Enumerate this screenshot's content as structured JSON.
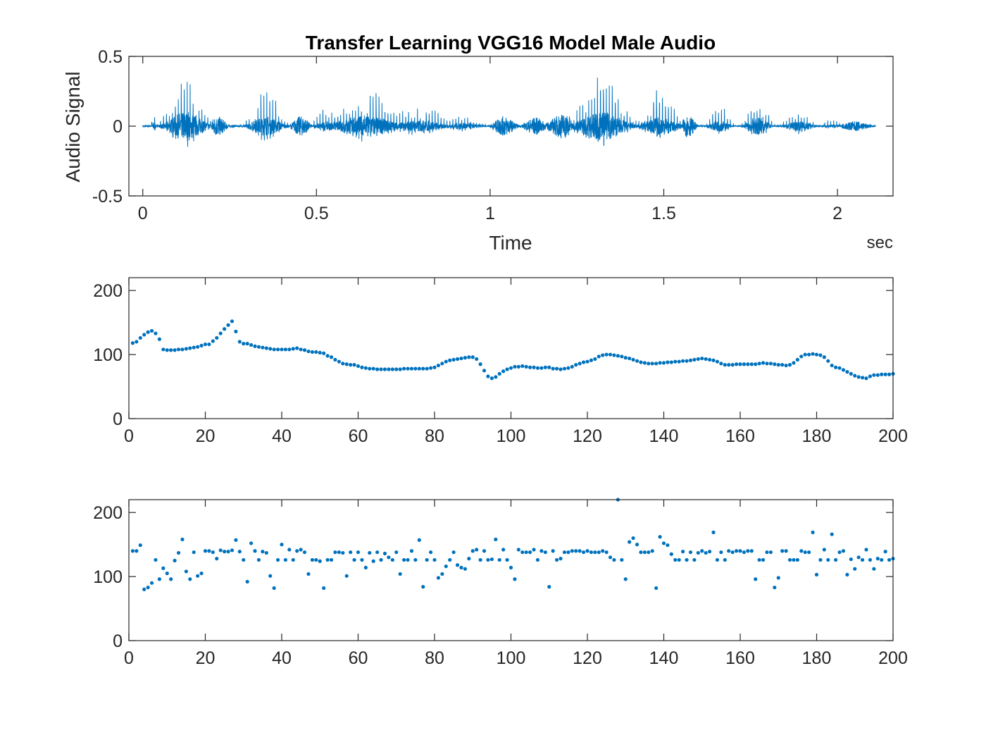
{
  "figure": {
    "title": "Transfer Learning VGG16 Model Male Audio",
    "colors": {
      "series": "#0072BD",
      "axes": "#262626",
      "background": "#ffffff"
    }
  },
  "chart_data": [
    {
      "type": "line",
      "title": "Transfer Learning VGG16 Model Male Audio",
      "xlabel": "Time",
      "xunit": "sec",
      "ylabel": "Audio Signal",
      "xlim": [
        -0.04,
        2.16
      ],
      "ylim": [
        -0.5,
        0.5
      ],
      "xticks": [
        0,
        0.5,
        1,
        1.5,
        2
      ],
      "xtick_labels": [
        "0",
        "0.5",
        "1",
        "1.5",
        "2"
      ],
      "yticks": [
        -0.5,
        0,
        0.5
      ],
      "ytick_labels": [
        "-0.5",
        "0",
        "0.5"
      ],
      "grid": false,
      "duration_sec": 2.11,
      "envelope_bursts": [
        {
          "center": 0.032,
          "width": 0.006,
          "amp": 0.13,
          "kind": "spike"
        },
        {
          "center": 0.125,
          "width": 0.05,
          "amp": 0.43,
          "kind": "voiced"
        },
        {
          "center": 0.215,
          "width": 0.025,
          "amp": 0.08,
          "kind": "noise"
        },
        {
          "center": 0.355,
          "width": 0.045,
          "amp": 0.28,
          "kind": "voiced"
        },
        {
          "center": 0.455,
          "width": 0.025,
          "amp": 0.08,
          "kind": "noise"
        },
        {
          "center": 0.53,
          "width": 0.035,
          "amp": 0.13,
          "kind": "voiced"
        },
        {
          "center": 0.64,
          "width": 0.09,
          "amp": 0.29,
          "kind": "voiced"
        },
        {
          "center": 0.79,
          "width": 0.08,
          "amp": 0.17,
          "kind": "voiced"
        },
        {
          "center": 0.92,
          "width": 0.05,
          "amp": 0.1,
          "kind": "voiced"
        },
        {
          "center": 1.04,
          "width": 0.03,
          "amp": 0.08,
          "kind": "noise"
        },
        {
          "center": 1.13,
          "width": 0.03,
          "amp": 0.07,
          "kind": "noise"
        },
        {
          "center": 1.21,
          "width": 0.04,
          "amp": 0.1,
          "kind": "noise"
        },
        {
          "center": 1.32,
          "width": 0.07,
          "amp": 0.4,
          "kind": "voiced"
        },
        {
          "center": 1.49,
          "width": 0.05,
          "amp": 0.26,
          "kind": "voiced"
        },
        {
          "center": 1.57,
          "width": 0.02,
          "amp": 0.09,
          "kind": "noise"
        },
        {
          "center": 1.66,
          "width": 0.03,
          "amp": 0.16,
          "kind": "voiced"
        },
        {
          "center": 1.77,
          "width": 0.03,
          "amp": 0.27,
          "kind": "voiced"
        },
        {
          "center": 1.89,
          "width": 0.04,
          "amp": 0.14,
          "kind": "voiced"
        },
        {
          "center": 1.98,
          "width": 0.03,
          "amp": 0.05,
          "kind": "voiced"
        },
        {
          "center": 2.05,
          "width": 0.04,
          "amp": 0.04,
          "kind": "noise"
        }
      ]
    },
    {
      "type": "scatter",
      "title": "",
      "xlim": [
        0,
        200
      ],
      "ylim": [
        0,
        220
      ],
      "xticks": [
        0,
        20,
        40,
        60,
        80,
        100,
        120,
        140,
        160,
        180,
        200
      ],
      "xtick_labels": [
        "0",
        "20",
        "40",
        "60",
        "80",
        "100",
        "120",
        "140",
        "160",
        "180",
        "200"
      ],
      "yticks": [
        0,
        100,
        200
      ],
      "ytick_labels": [
        "0",
        "100",
        "200"
      ],
      "grid": false,
      "x": [
        1,
        2,
        3,
        4,
        5,
        6,
        7,
        8,
        9,
        10,
        11,
        12,
        13,
        14,
        15,
        16,
        17,
        18,
        19,
        20,
        21,
        22,
        23,
        24,
        25,
        26,
        27,
        28,
        29,
        30,
        31,
        32,
        33,
        34,
        35,
        36,
        37,
        38,
        39,
        40,
        41,
        42,
        43,
        44,
        45,
        46,
        47,
        48,
        49,
        50,
        51,
        52,
        53,
        54,
        55,
        56,
        57,
        58,
        59,
        60,
        61,
        62,
        63,
        64,
        65,
        66,
        67,
        68,
        69,
        70,
        71,
        72,
        73,
        74,
        75,
        76,
        77,
        78,
        79,
        80,
        81,
        82,
        83,
        84,
        85,
        86,
        87,
        88,
        89,
        90,
        91,
        92,
        93,
        94,
        95,
        96,
        97,
        98,
        99,
        100,
        101,
        102,
        103,
        104,
        105,
        106,
        107,
        108,
        109,
        110,
        111,
        112,
        113,
        114,
        115,
        116,
        117,
        118,
        119,
        120,
        121,
        122,
        123,
        124,
        125,
        126,
        127,
        128,
        129,
        130,
        131,
        132,
        133,
        134,
        135,
        136,
        137,
        138,
        139,
        140,
        141,
        142,
        143,
        144,
        145,
        146,
        147,
        148,
        149,
        150,
        151,
        152,
        153,
        154,
        155,
        156,
        157,
        158,
        159,
        160,
        161,
        162,
        163,
        164,
        165,
        166,
        167,
        168,
        169,
        170,
        171,
        172,
        173,
        174,
        175,
        176,
        177,
        178,
        179,
        180,
        181,
        182,
        183,
        184,
        185,
        186,
        187,
        188,
        189,
        190,
        191,
        192,
        193,
        194,
        195,
        196,
        197,
        198,
        199,
        200
      ],
      "y": [
        118,
        120,
        126,
        131,
        135,
        137,
        133,
        124,
        108,
        107,
        107,
        107,
        108,
        108,
        109,
        110,
        111,
        112,
        114,
        116,
        116,
        121,
        126,
        133,
        140,
        146,
        152,
        136,
        120,
        117,
        117,
        115,
        113,
        112,
        111,
        110,
        109,
        108,
        108,
        108,
        108,
        108,
        109,
        110,
        108,
        107,
        105,
        104,
        104,
        103,
        102,
        98,
        96,
        92,
        89,
        86,
        85,
        84,
        84,
        82,
        80,
        79,
        78,
        78,
        77,
        77,
        77,
        77,
        77,
        77,
        77,
        78,
        78,
        78,
        78,
        78,
        78,
        78,
        79,
        80,
        83,
        86,
        89,
        91,
        92,
        93,
        94,
        95,
        96,
        96,
        93,
        85,
        75,
        66,
        63,
        65,
        70,
        74,
        77,
        79,
        81,
        81,
        82,
        81,
        80,
        80,
        79,
        79,
        80,
        80,
        78,
        78,
        77,
        78,
        79,
        81,
        84,
        86,
        88,
        89,
        91,
        93,
        97,
        99,
        100,
        100,
        99,
        98,
        97,
        95,
        94,
        92,
        90,
        88,
        87,
        86,
        86,
        86,
        87,
        87,
        88,
        88,
        89,
        89,
        90,
        90,
        91,
        92,
        93,
        94,
        93,
        92,
        91,
        89,
        86,
        84,
        84,
        84,
        85,
        85,
        85,
        85,
        85,
        85,
        86,
        87,
        86,
        86,
        85,
        84,
        84,
        83,
        84,
        87,
        92,
        97,
        100,
        100,
        101,
        100,
        99,
        96,
        90,
        83,
        80,
        79,
        76,
        73,
        70,
        67,
        65,
        64,
        63,
        66,
        68,
        68,
        69,
        69,
        69,
        70
      ]
    },
    {
      "type": "scatter",
      "title": "",
      "xlim": [
        0,
        200
      ],
      "ylim": [
        0,
        220
      ],
      "xticks": [
        0,
        20,
        40,
        60,
        80,
        100,
        120,
        140,
        160,
        180,
        200
      ],
      "xtick_labels": [
        "0",
        "20",
        "40",
        "60",
        "80",
        "100",
        "120",
        "140",
        "160",
        "180",
        "200"
      ],
      "yticks": [
        0,
        100,
        200
      ],
      "ytick_labels": [
        "0",
        "100",
        "200"
      ],
      "grid": false,
      "x": [
        1,
        2,
        3,
        4,
        5,
        6,
        7,
        8,
        9,
        10,
        11,
        12,
        13,
        14,
        15,
        16,
        17,
        18,
        19,
        20,
        21,
        22,
        23,
        24,
        25,
        26,
        27,
        28,
        29,
        30,
        31,
        32,
        33,
        34,
        35,
        36,
        37,
        38,
        39,
        40,
        41,
        42,
        43,
        44,
        45,
        46,
        47,
        48,
        49,
        50,
        51,
        52,
        53,
        54,
        55,
        56,
        57,
        58,
        59,
        60,
        61,
        62,
        63,
        64,
        65,
        66,
        67,
        68,
        69,
        70,
        71,
        72,
        73,
        74,
        75,
        76,
        77,
        78,
        79,
        80,
        81,
        82,
        83,
        84,
        85,
        86,
        87,
        88,
        89,
        90,
        91,
        92,
        93,
        94,
        95,
        96,
        97,
        98,
        99,
        100,
        101,
        102,
        103,
        104,
        105,
        106,
        107,
        108,
        109,
        110,
        111,
        112,
        113,
        114,
        115,
        116,
        117,
        118,
        119,
        120,
        121,
        122,
        123,
        124,
        125,
        126,
        127,
        128,
        129,
        130,
        131,
        132,
        133,
        134,
        135,
        136,
        137,
        138,
        139,
        140,
        141,
        142,
        143,
        144,
        145,
        146,
        147,
        148,
        149,
        150,
        151,
        152,
        153,
        154,
        155,
        156,
        157,
        158,
        159,
        160,
        161,
        162,
        163,
        164,
        165,
        166,
        167,
        168,
        169,
        170,
        171,
        172,
        173,
        174,
        175,
        176,
        177,
        178,
        179,
        180,
        181,
        182,
        183,
        184,
        185,
        186,
        187,
        188,
        189,
        190,
        191,
        192,
        193,
        194,
        195,
        196,
        197,
        198,
        199,
        200
      ],
      "y": [
        140,
        140,
        149,
        80,
        83,
        90,
        126,
        96,
        113,
        105,
        96,
        125,
        137,
        158,
        108,
        96,
        138,
        101,
        105,
        140,
        140,
        138,
        128,
        141,
        139,
        139,
        141,
        157,
        139,
        126,
        92,
        152,
        140,
        126,
        139,
        137,
        101,
        82,
        126,
        150,
        126,
        142,
        126,
        140,
        142,
        138,
        104,
        126,
        126,
        124,
        82,
        126,
        126,
        138,
        138,
        137,
        101,
        138,
        126,
        138,
        126,
        114,
        137,
        124,
        138,
        126,
        136,
        130,
        126,
        138,
        104,
        126,
        126,
        140,
        126,
        157,
        84,
        126,
        138,
        126,
        98,
        104,
        116,
        126,
        138,
        118,
        114,
        112,
        128,
        140,
        142,
        126,
        140,
        126,
        127,
        158,
        126,
        142,
        126,
        114,
        96,
        142,
        138,
        138,
        138,
        142,
        126,
        140,
        138,
        84,
        140,
        126,
        128,
        138,
        138,
        140,
        140,
        140,
        138,
        140,
        138,
        138,
        138,
        140,
        138,
        130,
        126,
        220,
        126,
        96,
        154,
        160,
        150,
        138,
        138,
        138,
        140,
        82,
        162,
        152,
        149,
        135,
        126,
        126,
        139,
        126,
        138,
        126,
        137,
        140,
        137,
        139,
        169,
        126,
        138,
        126,
        140,
        138,
        140,
        140,
        138,
        140,
        140,
        96,
        126,
        126,
        138,
        138,
        83,
        98,
        140,
        140,
        126,
        126,
        126,
        140,
        138,
        138,
        169,
        103,
        126,
        142,
        126,
        166,
        126,
        138,
        140,
        103,
        127,
        112,
        130,
        126,
        142,
        126,
        112,
        128,
        126,
        139,
        126,
        128
      ]
    }
  ]
}
